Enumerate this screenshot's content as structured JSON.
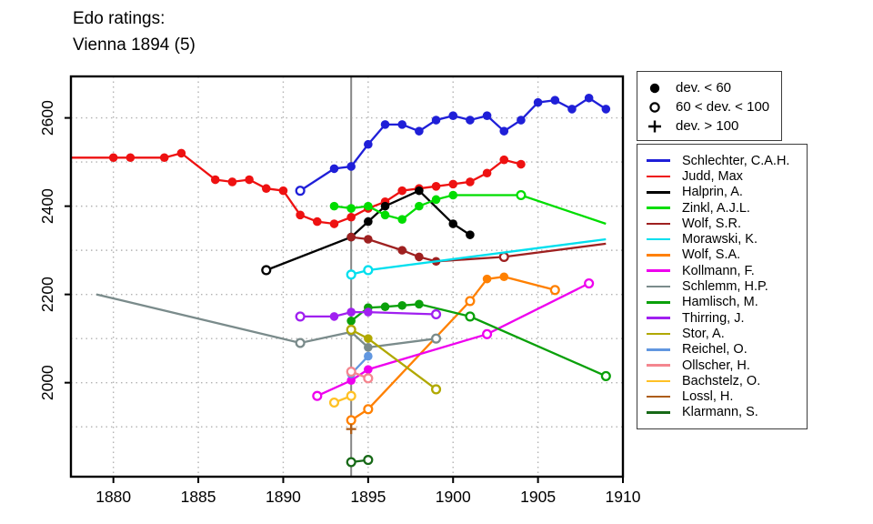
{
  "page": {
    "title_line1": "Edo ratings:",
    "title_line2": "Vienna 1894 (5)"
  },
  "marker_legend": {
    "items": [
      {
        "marker": "filled",
        "label": "dev. < 60"
      },
      {
        "marker": "open",
        "label": "60 < dev. < 100"
      },
      {
        "marker": "plus",
        "label": "dev. > 100"
      }
    ]
  },
  "chart_data": {
    "type": "line",
    "title": "Edo ratings:",
    "subtitle": "Vienna 1894 (5)",
    "xlabel": "",
    "ylabel": "",
    "xlim": [
      1877.5,
      1910
    ],
    "ylim": [
      1787,
      2694
    ],
    "x_ticks": [
      1880,
      1885,
      1890,
      1895,
      1900,
      1905,
      1910
    ],
    "y_ticks": [
      2000,
      2200,
      2400,
      2600
    ],
    "grid": {
      "on": true,
      "x_step": 5,
      "y_step": 100,
      "style": "dotted",
      "color": "#b3b3b3"
    },
    "event_line": {
      "x": 1894,
      "color": "#878787"
    },
    "legend_position": "right",
    "marker_meaning": {
      "f": "dev. < 60",
      "o": "60 < dev. < 100",
      "+": "dev. > 100",
      "n": "line end (no marker)"
    },
    "series": [
      {
        "name": "Schlechter, C.A.H.",
        "color": "#1f1fd8",
        "points": [
          [
            1891,
            2435,
            "o"
          ],
          [
            1893,
            2485,
            "f"
          ],
          [
            1894,
            2490,
            "f"
          ],
          [
            1895,
            2540,
            "f"
          ],
          [
            1896,
            2585,
            "f"
          ],
          [
            1897,
            2585,
            "f"
          ],
          [
            1898,
            2570,
            "f"
          ],
          [
            1899,
            2595,
            "f"
          ],
          [
            1900,
            2605,
            "f"
          ],
          [
            1901,
            2595,
            "f"
          ],
          [
            1902,
            2605,
            "f"
          ],
          [
            1903,
            2570,
            "f"
          ],
          [
            1904,
            2595,
            "f"
          ],
          [
            1905,
            2635,
            "f"
          ],
          [
            1906,
            2640,
            "f"
          ],
          [
            1907,
            2620,
            "f"
          ],
          [
            1908,
            2645,
            "f"
          ],
          [
            1909,
            2620,
            "f"
          ]
        ]
      },
      {
        "name": "Judd, Max",
        "color": "#ee1111",
        "points": [
          [
            1877.5,
            2510,
            "n"
          ],
          [
            1880,
            2510,
            "f"
          ],
          [
            1881,
            2510,
            "f"
          ],
          [
            1883,
            2510,
            "f"
          ],
          [
            1884,
            2520,
            "f"
          ],
          [
            1886,
            2460,
            "f"
          ],
          [
            1887,
            2455,
            "f"
          ],
          [
            1888,
            2460,
            "f"
          ],
          [
            1889,
            2440,
            "f"
          ],
          [
            1890,
            2435,
            "f"
          ],
          [
            1891,
            2380,
            "f"
          ],
          [
            1892,
            2365,
            "f"
          ],
          [
            1893,
            2360,
            "f"
          ],
          [
            1894,
            2375,
            "f"
          ],
          [
            1895,
            2395,
            "f"
          ],
          [
            1896,
            2410,
            "f"
          ],
          [
            1897,
            2435,
            "f"
          ],
          [
            1898,
            2440,
            "f"
          ],
          [
            1899,
            2445,
            "f"
          ],
          [
            1900,
            2450,
            "f"
          ],
          [
            1901,
            2455,
            "f"
          ],
          [
            1902,
            2475,
            "f"
          ],
          [
            1903,
            2505,
            "f"
          ],
          [
            1904,
            2495,
            "f"
          ]
        ]
      },
      {
        "name": "Halprin, A.",
        "color": "#000000",
        "points": [
          [
            1889,
            2255,
            "o"
          ],
          [
            1894,
            2330,
            "f"
          ],
          [
            1895,
            2365,
            "f"
          ],
          [
            1896,
            2400,
            "f"
          ],
          [
            1898,
            2435,
            "f"
          ],
          [
            1900,
            2360,
            "f"
          ],
          [
            1901,
            2335,
            "f"
          ]
        ]
      },
      {
        "name": "Zinkl, A.J.L.",
        "color": "#00dd00",
        "points": [
          [
            1893,
            2400,
            "f"
          ],
          [
            1894,
            2395,
            "f"
          ],
          [
            1895,
            2400,
            "f"
          ],
          [
            1896,
            2380,
            "f"
          ],
          [
            1897,
            2370,
            "f"
          ],
          [
            1898,
            2400,
            "f"
          ],
          [
            1899,
            2415,
            "f"
          ],
          [
            1900,
            2425,
            "f"
          ],
          [
            1904,
            2425,
            "o"
          ],
          [
            1909,
            2360,
            "n"
          ]
        ]
      },
      {
        "name": "Wolf, S.R.",
        "color": "#9e2020",
        "points": [
          [
            1894,
            2330,
            "f"
          ],
          [
            1895,
            2325,
            "f"
          ],
          [
            1897,
            2300,
            "f"
          ],
          [
            1898,
            2285,
            "f"
          ],
          [
            1899,
            2275,
            "f"
          ],
          [
            1903,
            2285,
            "o"
          ],
          [
            1909,
            2315,
            "n"
          ]
        ]
      },
      {
        "name": "Morawski, K.",
        "color": "#00dfee",
        "points": [
          [
            1894,
            2245,
            "o"
          ],
          [
            1895,
            2255,
            "o"
          ],
          [
            1909,
            2325,
            "n"
          ]
        ]
      },
      {
        "name": "Wolf, S.A.",
        "color": "#ff8000",
        "points": [
          [
            1894,
            1915,
            "o"
          ],
          [
            1895,
            1940,
            "o"
          ],
          [
            1901,
            2185,
            "o"
          ],
          [
            1902,
            2235,
            "f"
          ],
          [
            1903,
            2240,
            "f"
          ],
          [
            1906,
            2210,
            "o"
          ]
        ]
      },
      {
        "name": "Kollmann, F.",
        "color": "#ee00ee",
        "points": [
          [
            1892,
            1970,
            "o"
          ],
          [
            1894,
            2005,
            "f"
          ],
          [
            1895,
            2030,
            "f"
          ],
          [
            1902,
            2110,
            "o"
          ],
          [
            1908,
            2225,
            "o"
          ]
        ]
      },
      {
        "name": "Schlemm, H.P.",
        "color": "#7a8b8b",
        "points": [
          [
            1879,
            2200,
            "n"
          ],
          [
            1891,
            2090,
            "o"
          ],
          [
            1894,
            2115,
            "f"
          ],
          [
            1895,
            2080,
            "f"
          ],
          [
            1899,
            2100,
            "o"
          ]
        ]
      },
      {
        "name": "Hamlisch, M.",
        "color": "#0aa00a",
        "points": [
          [
            1894,
            2140,
            "f"
          ],
          [
            1895,
            2170,
            "f"
          ],
          [
            1896,
            2172,
            "f"
          ],
          [
            1897,
            2175,
            "f"
          ],
          [
            1898,
            2178,
            "f"
          ],
          [
            1901,
            2150,
            "o"
          ],
          [
            1909,
            2015,
            "o"
          ]
        ]
      },
      {
        "name": "Thirring, J.",
        "color": "#a020f0",
        "points": [
          [
            1891,
            2150,
            "o"
          ],
          [
            1893,
            2150,
            "f"
          ],
          [
            1894,
            2160,
            "f"
          ],
          [
            1895,
            2160,
            "f"
          ],
          [
            1899,
            2155,
            "o"
          ]
        ]
      },
      {
        "name": "Stor, A.",
        "color": "#b0a800",
        "points": [
          [
            1894,
            2120,
            "o"
          ],
          [
            1895,
            2100,
            "f"
          ],
          [
            1899,
            1985,
            "o"
          ]
        ]
      },
      {
        "name": "Reichel, O.",
        "color": "#6197e0",
        "points": [
          [
            1894,
            2020,
            "f"
          ],
          [
            1895,
            2060,
            "f"
          ]
        ]
      },
      {
        "name": "Ollscher, H.",
        "color": "#f4868f",
        "points": [
          [
            1894,
            2025,
            "o"
          ],
          [
            1895,
            2010,
            "o"
          ]
        ]
      },
      {
        "name": "Bachstelz, O.",
        "color": "#ffc125",
        "points": [
          [
            1893,
            1955,
            "o"
          ],
          [
            1894,
            1970,
            "o"
          ]
        ]
      },
      {
        "name": "Lossl, H.",
        "color": "#ad5d18",
        "points": [
          [
            1894,
            1895,
            "+"
          ]
        ]
      },
      {
        "name": "Klarmann, S.",
        "color": "#176917",
        "points": [
          [
            1894,
            1820,
            "o"
          ],
          [
            1895,
            1825,
            "o"
          ]
        ]
      }
    ]
  }
}
